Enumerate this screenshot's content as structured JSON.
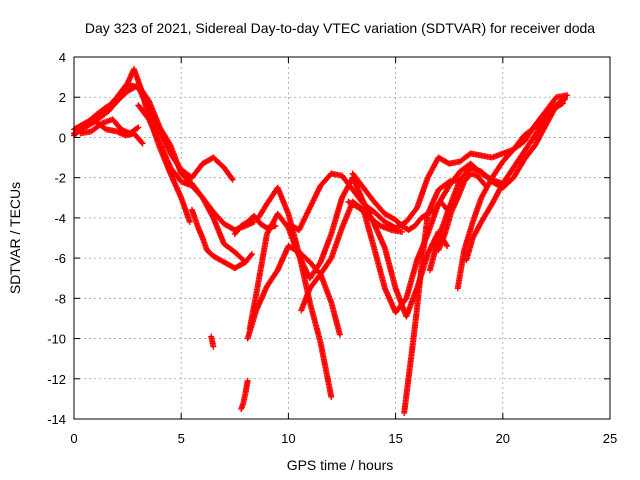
{
  "chart_data": {
    "type": "scatter",
    "title": "Day 323 of 2021, Sidereal Day-to-day VTEC variation (SDTVAR) for receiver doda",
    "xlabel": "GPS time / hours",
    "ylabel": "SDTVAR / TECUs",
    "xlim": [
      0,
      25
    ],
    "ylim": [
      -14,
      4
    ],
    "xticks": [
      "0",
      "5",
      "10",
      "15",
      "20",
      "25"
    ],
    "yticks": [
      "4",
      "2",
      "0",
      "-2",
      "-4",
      "-6",
      "-8",
      "-10",
      "-12",
      "-14"
    ],
    "grid": true,
    "marker": "+",
    "color": "#ff0000",
    "series": [
      {
        "x": [
          0.0,
          0.5,
          1.0,
          1.5,
          2.0,
          2.5,
          2.8,
          3.1,
          3.5,
          4.0,
          4.5,
          5.0,
          5.4
        ],
        "y": [
          0.4,
          0.7,
          1.0,
          1.4,
          2.0,
          2.7,
          3.4,
          2.5,
          1.0,
          -0.5,
          -1.8,
          -3.0,
          -4.2
        ]
      },
      {
        "x": [
          0.1,
          0.6,
          1.1,
          1.6,
          2.1,
          2.6,
          3.0,
          3.5,
          4.0,
          4.5,
          5.0,
          5.5,
          6.0,
          6.5,
          7.0,
          7.4
        ],
        "y": [
          0.3,
          0.6,
          0.9,
          1.3,
          1.9,
          2.6,
          2.5,
          1.4,
          0.3,
          -0.8,
          -1.6,
          -2.0,
          -1.3,
          -1.0,
          -1.5,
          -2.1
        ]
      },
      {
        "x": [
          0.0,
          0.5,
          1.0,
          1.5,
          2.0,
          2.5,
          3.0,
          3.5,
          4.0,
          4.5,
          5.0,
          5.5,
          6.0,
          6.5,
          7.0,
          7.5,
          8.0,
          8.4
        ],
        "y": [
          0.1,
          0.6,
          1.1,
          1.5,
          1.8,
          2.3,
          2.6,
          1.8,
          0.5,
          -0.4,
          -1.8,
          -2.3,
          -3.0,
          -3.7,
          -4.3,
          -4.6,
          -4.4,
          -4.2
        ]
      },
      {
        "x": [
          0.0,
          0.5,
          1.0,
          1.5,
          2.0,
          2.4,
          2.8,
          3.2
        ],
        "y": [
          0.2,
          0.5,
          0.8,
          0.4,
          0.3,
          0.1,
          0.2,
          -0.3
        ]
      },
      {
        "x": [
          0.3,
          0.8,
          1.3,
          1.8,
          2.2,
          2.6,
          3.0
        ],
        "y": [
          0.2,
          0.3,
          0.7,
          0.9,
          0.4,
          0.2,
          0.5
        ]
      },
      {
        "x": [
          3.0,
          3.5,
          4.0,
          4.5,
          5.0,
          5.5,
          6.0,
          6.5,
          7.0,
          7.5,
          8.0
        ],
        "y": [
          1.6,
          0.9,
          -0.3,
          -1.5,
          -2.2,
          -2.4,
          -3.0,
          -4.0,
          -5.3,
          -5.7,
          -6.2
        ]
      },
      {
        "x": [
          5.5,
          5.8,
          6.0,
          6.2,
          6.5,
          7.0,
          7.5,
          8.0,
          8.3
        ],
        "y": [
          -3.6,
          -4.5,
          -5.0,
          -5.6,
          -5.9,
          -6.2,
          -6.5,
          -6.2,
          -5.8
        ]
      },
      {
        "x": [
          6.4,
          6.5
        ],
        "y": [
          -9.9,
          -10.4
        ]
      },
      {
        "x": [
          7.8,
          7.9,
          8.0,
          8.1
        ],
        "y": [
          -13.5,
          -13.2,
          -12.7,
          -12.1
        ]
      },
      {
        "x": [
          7.5,
          7.8,
          8.1,
          8.4,
          8.7,
          9.0,
          9.4
        ],
        "y": [
          -4.8,
          -4.4,
          -4.2,
          -3.9,
          -4.3,
          -4.5,
          -4.4
        ]
      },
      {
        "x": [
          8.1,
          8.5,
          9.0,
          9.5,
          10.0,
          10.5,
          11.0,
          11.5,
          12.0,
          12.4
        ],
        "y": [
          -10.0,
          -8.6,
          -7.4,
          -6.6,
          -5.4,
          -5.7,
          -6.2,
          -6.8,
          -8.2,
          -9.8
        ]
      },
      {
        "x": [
          8.2,
          8.5,
          9.0,
          9.5,
          10.0,
          10.5,
          11.0,
          11.5,
          12.0,
          12.5,
          13.0,
          13.5,
          14.0,
          14.5,
          15.0,
          15.5,
          16.0,
          16.5,
          17.0,
          17.4
        ],
        "y": [
          -9.5,
          -7.8,
          -4.8,
          -3.8,
          -4.5,
          -5.9,
          -7.0,
          -6.2,
          -4.8,
          -3.0,
          -2.0,
          -3.2,
          -4.3,
          -5.5,
          -7.5,
          -8.9,
          -7.5,
          -5.8,
          -4.7,
          -5.4
        ]
      },
      {
        "x": [
          8.6,
          9.0,
          9.5,
          10.0,
          10.5,
          11.0,
          11.5,
          12.0
        ],
        "y": [
          -4.0,
          -3.3,
          -2.5,
          -3.8,
          -5.8,
          -8.2,
          -10.2,
          -12.9
        ]
      },
      {
        "x": [
          10.0,
          10.5,
          11.0,
          11.5,
          12.0,
          12.5,
          13.0,
          13.5,
          14.0,
          14.5,
          15.0,
          15.5,
          16.0,
          16.5,
          17.0,
          17.5,
          18.0,
          18.5,
          19.0,
          19.5,
          20.0,
          20.5,
          21.0,
          21.5,
          22.0,
          22.5,
          23.0
        ],
        "y": [
          -4.3,
          -4.6,
          -3.5,
          -2.4,
          -1.8,
          -1.9,
          -2.6,
          -3.3,
          -3.7,
          -4.2,
          -4.5,
          -4.2,
          -3.5,
          -2.0,
          -1.0,
          -1.3,
          -1.2,
          -0.8,
          -0.9,
          -1.0,
          -0.8,
          -0.6,
          -0.2,
          0.6,
          1.3,
          2.0,
          2.1
        ]
      },
      {
        "x": [
          10.6,
          11.0,
          11.5,
          12.0,
          12.5,
          13.0,
          13.5,
          14.0,
          14.5,
          15.0,
          15.5,
          16.0,
          16.5,
          17.0,
          17.5,
          18.0,
          18.5,
          19.0,
          19.5,
          20.0
        ],
        "y": [
          -8.6,
          -7.5,
          -6.8,
          -6.0,
          -4.5,
          -3.2,
          -3.6,
          -5.5,
          -7.5,
          -8.7,
          -8.0,
          -6.1,
          -4.8,
          -3.3,
          -2.4,
          -1.7,
          -1.3,
          -1.8,
          -2.1,
          -2.3
        ]
      },
      {
        "x": [
          13.0,
          13.5,
          14.0,
          14.5,
          15.0,
          15.3,
          15.6,
          15.9,
          16.2,
          16.5,
          16.8,
          17.1,
          17.5
        ],
        "y": [
          -1.8,
          -2.5,
          -3.2,
          -3.8,
          -4.1,
          -4.4,
          -4.6,
          -4.4,
          -4.0,
          -3.8,
          -3.6,
          -3.2,
          -3.7
        ]
      },
      {
        "x": [
          15.4,
          15.6,
          15.8,
          16.0,
          16.2,
          16.5,
          17.0,
          17.5,
          18.0
        ],
        "y": [
          -13.7,
          -12.0,
          -10.3,
          -8.5,
          -6.5,
          -3.8,
          -2.6,
          -2.2,
          -2.1
        ]
      },
      {
        "x": [
          16.6,
          17.0,
          17.5,
          18.0,
          18.5,
          19.0,
          19.5,
          20.0,
          20.5,
          21.0,
          21.5,
          22.0,
          22.5,
          22.9
        ],
        "y": [
          -6.6,
          -5.0,
          -3.5,
          -2.1,
          -1.5,
          -1.7,
          -2.2,
          -2.5,
          -2.0,
          -1.1,
          -0.4,
          0.6,
          1.6,
          2.0
        ]
      },
      {
        "x": [
          17.0,
          17.3,
          17.6,
          17.9,
          18.2,
          18.5,
          18.8,
          19.2
        ],
        "y": [
          -5.6,
          -4.8,
          -3.7,
          -3.0,
          -2.2,
          -1.8,
          -1.9,
          -2.4
        ]
      },
      {
        "x": [
          17.9,
          18.2,
          18.6,
          19.0,
          19.5,
          20.0,
          20.5,
          21.0,
          21.5,
          22.0,
          22.5,
          22.9
        ],
        "y": [
          -7.5,
          -5.6,
          -4.2,
          -3.0,
          -2.0,
          -1.2,
          -0.6,
          0.1,
          0.5,
          1.2,
          1.6,
          1.9
        ]
      },
      {
        "x": [
          18.3,
          18.6,
          19.0,
          19.5,
          20.0,
          20.5,
          21.0,
          21.5,
          22.0,
          22.5,
          22.8
        ],
        "y": [
          -6.1,
          -5.0,
          -4.2,
          -3.3,
          -2.3,
          -1.5,
          -0.7,
          0.1,
          0.9,
          1.5,
          1.7
        ]
      },
      {
        "x": [
          12.8,
          13.3,
          13.8,
          14.3,
          14.8,
          15.3
        ],
        "y": [
          -3.2,
          -3.5,
          -4.0,
          -4.4,
          -4.6,
          -4.7
        ]
      }
    ]
  }
}
